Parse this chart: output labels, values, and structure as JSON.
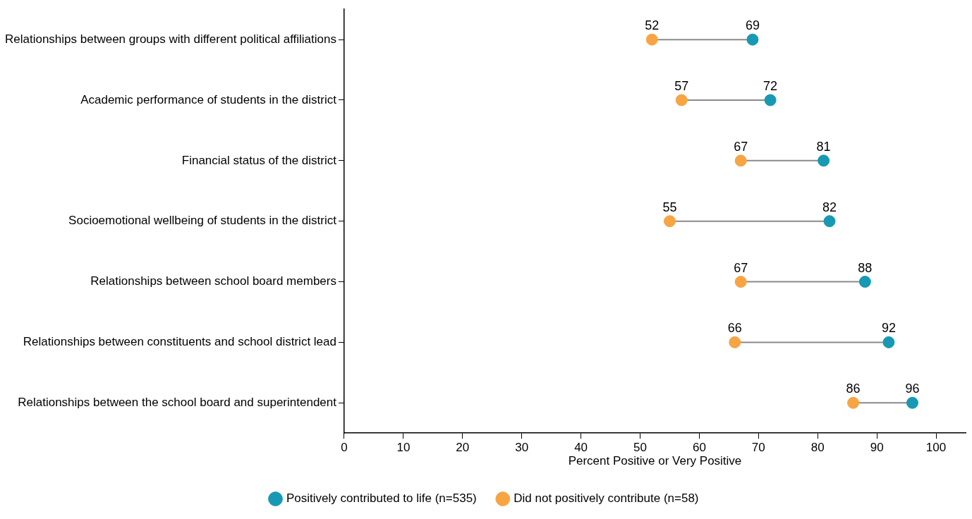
{
  "chart_data": {
    "type": "scatter",
    "orientation": "horizontal",
    "xlabel": "Percent Positive or Very Positive",
    "categories": [
      "Relationships between groups with different political affiliations",
      "Academic performance of students in the district",
      "Financial status of the district",
      "Socioemotional wellbeing of students in the district",
      "Relationships between school board members",
      "Relationships between constituents and school district lead",
      "Relationships between the school board and superintendent"
    ],
    "series": [
      {
        "name": "Positively contributed to life (n=535)",
        "color": "#1899b3",
        "values": [
          69,
          72,
          81,
          82,
          88,
          92,
          96
        ]
      },
      {
        "name": "Did not positively contribute (n=58)",
        "color": "#f8a443",
        "values": [
          52,
          57,
          67,
          55,
          67,
          66,
          86
        ]
      }
    ],
    "xlim": [
      0,
      105
    ],
    "xticks": [
      0,
      10,
      20,
      30,
      40,
      50,
      60,
      70,
      80,
      90,
      100
    ],
    "grid": false,
    "legend": "bottom",
    "marker": "circle",
    "data_labels": true
  }
}
